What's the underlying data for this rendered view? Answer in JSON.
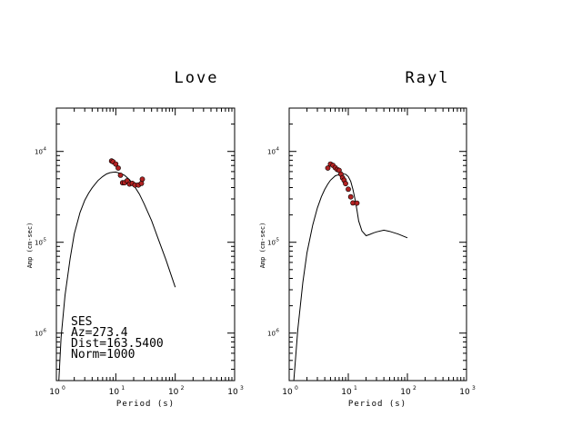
{
  "chart_data": [
    {
      "type": "scatter",
      "title": "Love",
      "xlabel": "Period (s)",
      "ylabel": "Amp (cm-sec)",
      "x_scale": "log",
      "y_scale": "log",
      "xlim": [
        1,
        1000
      ],
      "ylim": [
        3e-07,
        0.0003
      ],
      "x_ticks": [
        {
          "base": "10",
          "exp": "0"
        },
        {
          "base": "10",
          "exp": "1"
        },
        {
          "base": "10",
          "exp": "2"
        },
        {
          "base": "10",
          "exp": "3"
        }
      ],
      "y_ticks": [
        {
          "base": "10",
          "exp": "-4",
          "value": 0.0001
        },
        {
          "base": "10",
          "exp": "-5",
          "value": 1e-05
        },
        {
          "base": "10",
          "exp": "-6",
          "value": 1e-06
        }
      ],
      "annotations": [
        "SES",
        "Az=273.4",
        "Dist=163.5400",
        "Norm=1000"
      ],
      "point_color": "#b22222",
      "line_color": "#000000",
      "series": [
        {
          "kind": "line",
          "x": [
            1.1,
            1.2,
            1.4,
            1.7,
            2.0,
            2.5,
            3.0,
            3.5,
            4.0,
            5.0,
            6.0,
            7.0,
            8.0,
            9.0,
            10.0,
            12.0,
            14.0,
            17.0,
            20.0,
            25.0,
            30.0,
            40.0,
            50.0,
            70.0,
            100.0
          ],
          "y": [
            3e-07,
            9e-07,
            2.6e-06,
            6.6e-06,
            1.24e-05,
            2.13e-05,
            2.9e-05,
            3.48e-05,
            3.97e-05,
            4.78e-05,
            5.28e-05,
            5.65e-05,
            5.83e-05,
            5.91e-05,
            5.93e-05,
            5.72e-05,
            5.47e-05,
            4.88e-05,
            4.27e-05,
            3.39e-05,
            2.65e-05,
            1.73e-05,
            1.16e-05,
            6.4e-06,
            3.2e-06
          ]
        },
        {
          "kind": "points",
          "x": [
            8.5,
            9.0,
            10.0,
            11.0,
            12.0,
            13.0,
            14.0,
            15.5,
            17.0,
            19.0,
            21.0,
            24.0,
            27.0,
            28.0
          ],
          "y": [
            7.86e-05,
            7.69e-05,
            7.26e-05,
            6.57e-05,
            5.47e-05,
            4.52e-05,
            4.52e-05,
            4.76e-05,
            4.38e-05,
            4.45e-05,
            4.27e-05,
            4.27e-05,
            4.45e-05,
            4.94e-05
          ]
        }
      ]
    },
    {
      "type": "scatter",
      "title": "Rayl",
      "xlabel": "Period (s)",
      "ylabel": "Amp (cm-sec)",
      "x_scale": "log",
      "y_scale": "log",
      "xlim": [
        1,
        1000
      ],
      "ylim": [
        3e-07,
        0.0003
      ],
      "x_ticks": [
        {
          "base": "10",
          "exp": "0"
        },
        {
          "base": "10",
          "exp": "1"
        },
        {
          "base": "10",
          "exp": "2"
        },
        {
          "base": "10",
          "exp": "3"
        }
      ],
      "y_ticks": [
        {
          "base": "10",
          "exp": "-4",
          "value": 0.0001
        },
        {
          "base": "10",
          "exp": "-5",
          "value": 1e-05
        },
        {
          "base": "10",
          "exp": "-6",
          "value": 1e-06
        }
      ],
      "annotations": [],
      "point_color": "#b22222",
      "line_color": "#000000",
      "series": [
        {
          "kind": "line",
          "x": [
            1.2,
            1.4,
            1.7,
            2.0,
            2.5,
            3.0,
            3.5,
            4.0,
            4.5,
            5.0,
            6.0,
            7.0,
            8.0,
            9.0,
            10.0,
            11.0,
            12.0,
            13.0,
            14.0,
            15.0,
            17.0,
            20.0,
            23.0,
            27.0,
            30.0,
            40.0,
            50.0,
            70.0,
            100.0
          ],
          "y": [
            3e-07,
            1.1e-06,
            3.6e-06,
            7.7e-06,
            1.55e-05,
            2.39e-05,
            3.17e-05,
            3.82e-05,
            4.38e-05,
            4.82e-05,
            5.38e-05,
            5.56e-05,
            5.65e-05,
            5.61e-05,
            5.28e-05,
            4.68e-05,
            3.82e-05,
            2.98e-05,
            2.27e-05,
            1.72e-05,
            1.33e-05,
            1.18e-05,
            1.22e-05,
            1.27e-05,
            1.3e-05,
            1.36e-05,
            1.32e-05,
            1.23e-05,
            1.12e-05
          ]
        },
        {
          "kind": "points",
          "x": [
            4.5,
            5.0,
            5.5,
            6.0,
            6.5,
            7.0,
            7.5,
            8.0,
            8.5,
            9.0,
            10.0,
            11.0,
            12.0,
            14.0
          ],
          "y": [
            6.56e-05,
            7.26e-05,
            7.04e-05,
            6.62e-05,
            6.33e-05,
            6.2e-05,
            5.63e-05,
            5.13e-05,
            4.82e-05,
            4.43e-05,
            3.84e-05,
            3.16e-05,
            2.71e-05,
            2.7e-05
          ]
        }
      ]
    }
  ]
}
